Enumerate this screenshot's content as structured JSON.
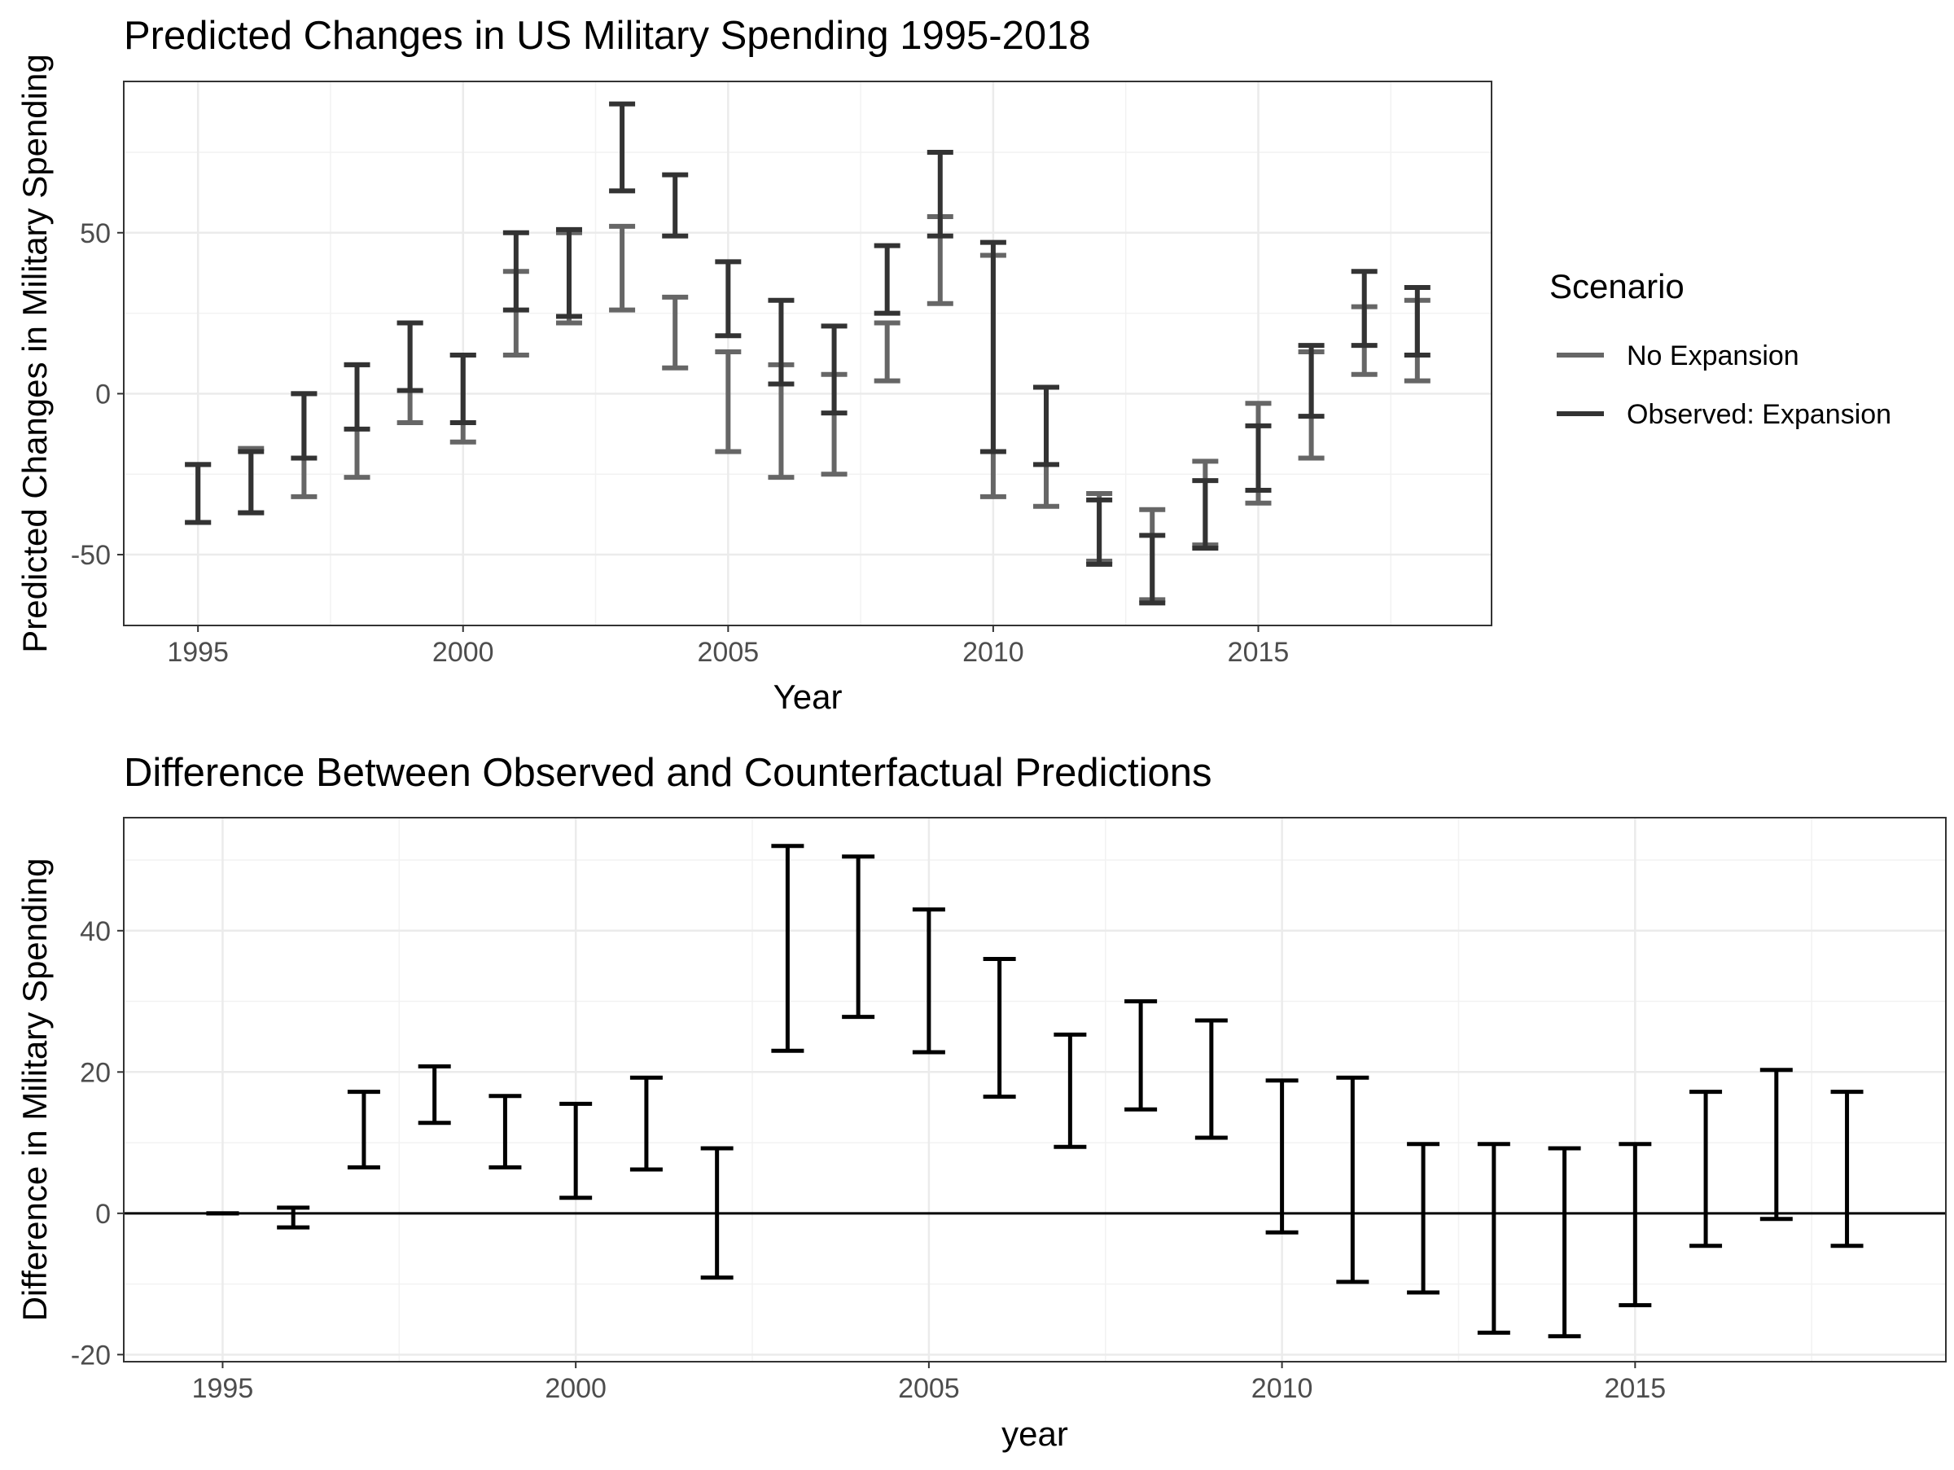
{
  "chart_data": [
    {
      "type": "errorbar",
      "title": "Predicted Changes in US Military Spending 1995-2018",
      "xlabel": "Year",
      "ylabel": "Predicted Changes in Military Spending",
      "xlim": [
        1993.6,
        2019.4
      ],
      "ylim": [
        -72,
        97
      ],
      "x_ticks": [
        1995,
        2000,
        2005,
        2010,
        2015
      ],
      "y_ticks": [
        -50,
        0,
        50
      ],
      "grid": true,
      "legend": {
        "title": "Scenario",
        "position": "right",
        "entries": [
          "No Expansion",
          "Observed: Expansion"
        ]
      },
      "series": [
        {
          "name": "No Expansion",
          "color": "#666666",
          "x": [
            1995,
            1996,
            1997,
            1998,
            1999,
            2000,
            2001,
            2002,
            2003,
            2004,
            2005,
            2006,
            2007,
            2008,
            2009,
            2010,
            2011,
            2012,
            2013,
            2014,
            2015,
            2016,
            2017,
            2018
          ],
          "lower": [
            -40,
            -37,
            -32,
            -26,
            -9,
            -15,
            12,
            22,
            26,
            8,
            -18,
            -26,
            -25,
            4,
            28,
            -32,
            -35,
            -52,
            -64,
            -47,
            -34,
            -20,
            6,
            4
          ],
          "upper": [
            -22,
            -17,
            0,
            9,
            22,
            12,
            38,
            50,
            52,
            30,
            13,
            9,
            6,
            22,
            55,
            43,
            2,
            -31,
            -36,
            -21,
            -3,
            13,
            27,
            29
          ]
        },
        {
          "name": "Observed: Expansion",
          "color": "#333333",
          "x": [
            1995,
            1996,
            1997,
            1998,
            1999,
            2000,
            2001,
            2002,
            2003,
            2004,
            2005,
            2006,
            2007,
            2008,
            2009,
            2010,
            2011,
            2012,
            2013,
            2014,
            2015,
            2016,
            2017,
            2018
          ],
          "lower": [
            -40,
            -37,
            -20,
            -11,
            1,
            -9,
            26,
            24,
            63,
            49,
            18,
            3,
            -6,
            25,
            49,
            -18,
            -22,
            -53,
            -65,
            -48,
            -30,
            -7,
            15,
            12
          ],
          "upper": [
            -22,
            -18,
            0,
            9,
            22,
            12,
            50,
            51,
            90,
            68,
            41,
            29,
            21,
            46,
            75,
            47,
            2,
            -33,
            -44,
            -27,
            -10,
            15,
            38,
            33
          ]
        }
      ]
    },
    {
      "type": "errorbar",
      "title": "Difference Between Observed and Counterfactual Predictions",
      "xlabel": "year",
      "ylabel": "Difference in Military Spending",
      "xlim": [
        1993.6,
        2019.4
      ],
      "ylim": [
        -21,
        56
      ],
      "x_ticks": [
        1995,
        2000,
        2005,
        2010,
        2015
      ],
      "y_ticks": [
        -20,
        0,
        20,
        40
      ],
      "grid": true,
      "reference_line": 0,
      "series": [
        {
          "color": "#000000",
          "x": [
            1995,
            1996,
            1997,
            1998,
            1999,
            2000,
            2001,
            2002,
            2003,
            2004,
            2005,
            2006,
            2007,
            2008,
            2009,
            2010,
            2011,
            2012,
            2013,
            2014,
            2015,
            2016,
            2017,
            2018
          ],
          "lower": [
            0,
            -2,
            6.5,
            12.8,
            6.5,
            2.2,
            6.2,
            -9.1,
            23,
            27.8,
            22.8,
            16.5,
            9.4,
            14.7,
            10.7,
            -2.7,
            -9.7,
            -11.2,
            -16.9,
            -17.4,
            -13,
            -4.6,
            -0.8,
            -4.6
          ],
          "upper": [
            0,
            0.8,
            17.2,
            20.8,
            16.6,
            15.5,
            19.2,
            9.2,
            52,
            50.5,
            43,
            36,
            25.3,
            30,
            27.3,
            18.8,
            19.2,
            9.8,
            9.8,
            9.2,
            9.8,
            17.2,
            20.3,
            17.2
          ]
        }
      ]
    }
  ]
}
